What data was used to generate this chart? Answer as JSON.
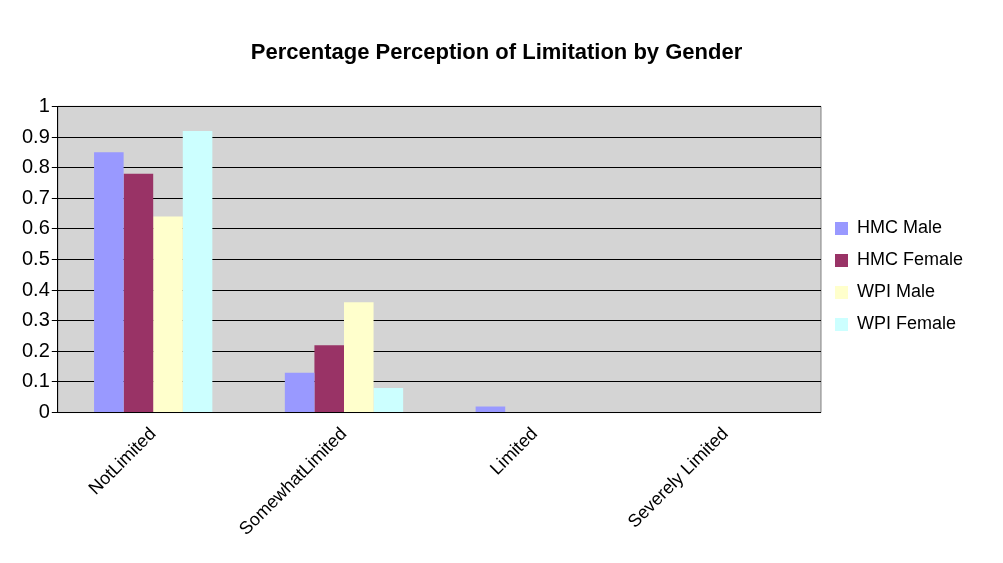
{
  "chart_data": {
    "type": "bar",
    "title": "Percentage Perception of Limitation by Gender",
    "categories": [
      "NotLimited",
      "SomewhatLimited",
      "Limited",
      "Severely Limited"
    ],
    "series": [
      {
        "name": "HMC Male",
        "color": "#9999ff",
        "values": [
          0.85,
          0.13,
          0.02,
          0
        ]
      },
      {
        "name": "HMC Female",
        "color": "#993366",
        "values": [
          0.78,
          0.22,
          0,
          0
        ]
      },
      {
        "name": "WPI Male",
        "color": "#ffffcc",
        "values": [
          0.64,
          0.36,
          0,
          0
        ]
      },
      {
        "name": "WPI Female",
        "color": "#ccffff",
        "values": [
          0.92,
          0.08,
          0,
          0
        ]
      }
    ],
    "ylim": [
      0,
      1
    ],
    "yticks": [
      0,
      0.1,
      0.2,
      0.3,
      0.4,
      0.5,
      0.6,
      0.7,
      0.8,
      0.9,
      1
    ],
    "grid": "y",
    "legend": "right"
  }
}
